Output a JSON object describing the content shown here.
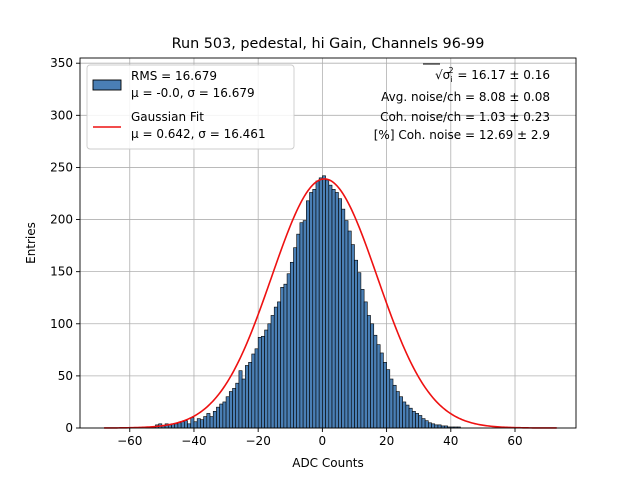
{
  "chart_data": {
    "type": "histogram",
    "title": "Run 503, pedestal, hi Gain, Channels 96-99",
    "xlabel": "ADC Counts",
    "ylabel": "Entries",
    "xlim": [
      -75.5,
      79.0
    ],
    "ylim": [
      0,
      355
    ],
    "xticks": [
      -60,
      -40,
      -20,
      0,
      20,
      40,
      60
    ],
    "yticks": [
      0,
      50,
      100,
      150,
      200,
      250,
      300,
      350
    ],
    "grid": true,
    "bin_start": -68,
    "bin_width": 1,
    "counts": [
      0,
      0,
      0,
      0,
      0,
      0,
      0,
      0,
      0,
      0,
      0,
      0,
      0,
      1,
      1,
      1,
      3,
      4,
      2,
      4,
      3,
      4,
      4,
      5,
      6,
      7,
      4,
      10,
      6,
      9,
      8,
      11,
      14,
      11,
      16,
      20,
      23,
      25,
      30,
      35,
      38,
      43,
      55,
      47,
      60,
      63,
      71,
      76,
      87,
      88,
      94,
      100,
      108,
      116,
      121,
      135,
      138,
      148,
      159,
      173,
      186,
      197,
      199,
      218,
      226,
      229,
      237,
      240,
      242,
      238,
      233,
      229,
      226,
      220,
      210,
      199,
      189,
      176,
      161,
      149,
      133,
      121,
      108,
      100,
      89,
      80,
      72,
      63,
      56,
      47,
      41,
      35,
      30,
      25,
      22,
      19,
      16,
      14,
      12,
      9,
      7,
      5,
      4,
      3,
      3,
      2,
      2,
      1,
      1,
      1,
      1,
      0,
      0,
      0,
      0,
      0,
      0,
      0,
      0,
      0,
      0,
      0,
      0,
      0,
      0,
      0,
      0,
      0,
      0,
      0,
      0,
      0,
      0,
      0,
      0,
      0,
      0,
      0,
      0,
      0,
      0
    ],
    "series": [
      {
        "name": "Histogram",
        "legend_line1": "RMS = 16.679",
        "legend_line2": "μ = -0.0, σ = 16.679",
        "color": "#4a7fb5",
        "edge_color": "#000000"
      },
      {
        "name": "Gaussian Fit",
        "legend_line1": "Gaussian Fit",
        "legend_line2": "μ = 0.642, σ = 16.461",
        "color": "#ee1111",
        "amplitude": 239,
        "mu": 0.642,
        "sigma": 16.461,
        "x_range": [
          -68,
          73
        ]
      }
    ],
    "annotations": [
      {
        "prefix": "√σ",
        "sub": "i",
        "sup": "2",
        "suffix": " = 16.17 ± 0.16"
      },
      {
        "text": "Avg. noise/ch = 8.08 ± 0.08"
      },
      {
        "text": "Coh. noise/ch = 1.03 ± 0.23"
      },
      {
        "text": "[%] Coh. noise = 12.69 ± 2.9"
      }
    ]
  }
}
